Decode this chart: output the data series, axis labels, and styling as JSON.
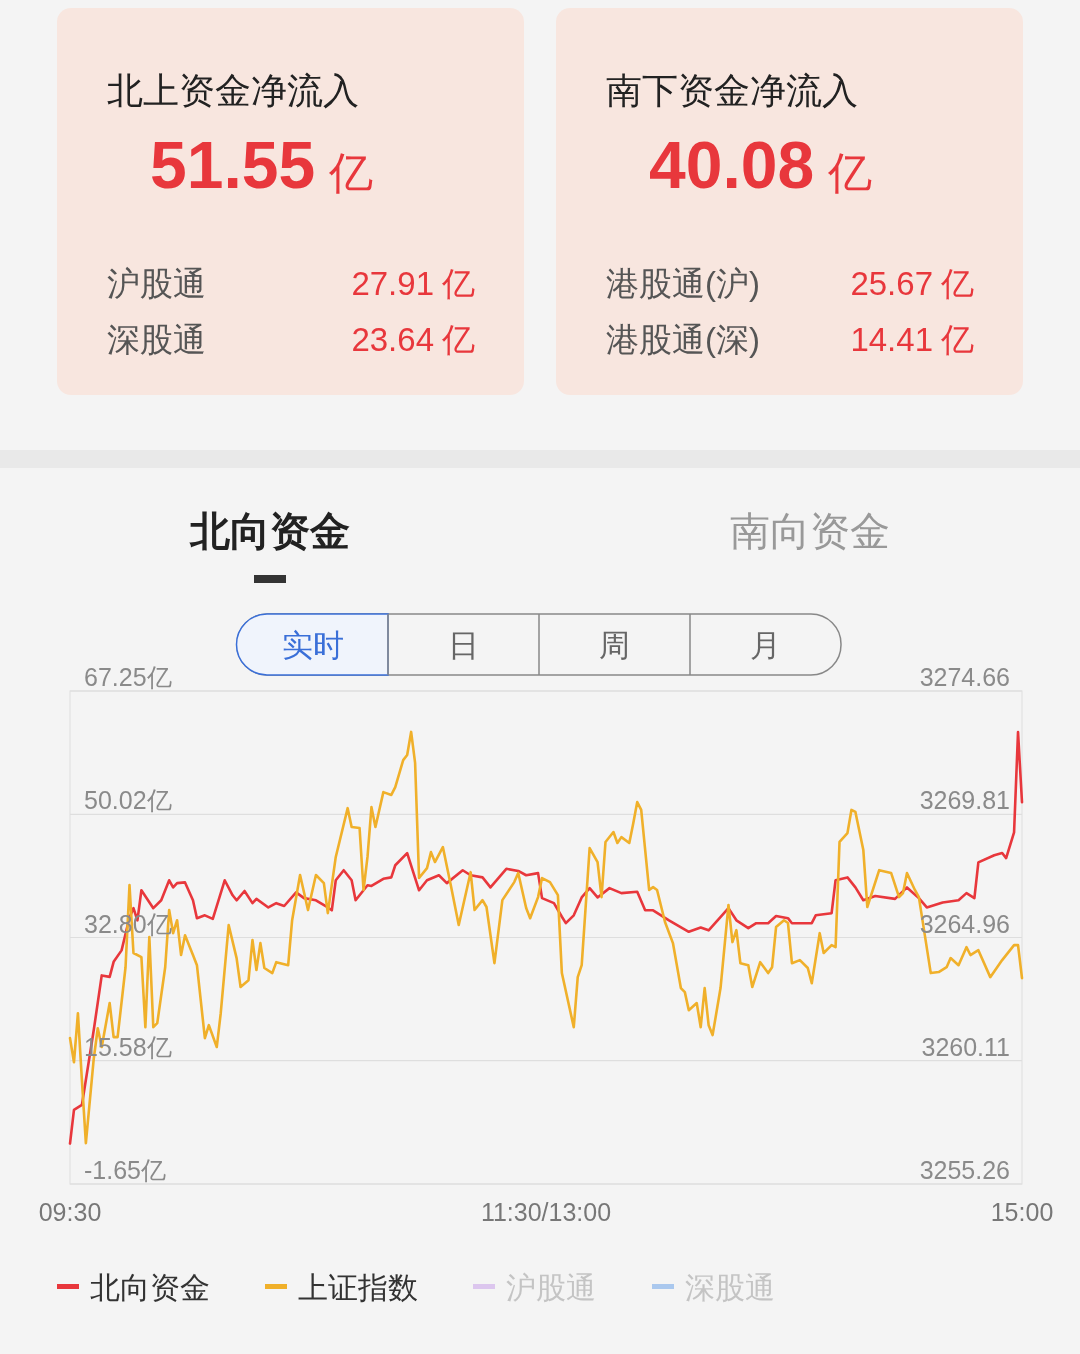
{
  "chart_data": [
    {
      "type": "other",
      "title": "北上资金净流入",
      "subtitle": "51.55 亿",
      "annotations": [
        "沪股通",
        "27.91 亿",
        "深股通",
        "23.64 亿"
      ]
    },
    {
      "type": "other",
      "title": "南下资金净流入",
      "subtitle": "40.08 亿",
      "annotations": [
        "港股通(沪)",
        "25.67 亿",
        "港股通(深)",
        "14.41 亿"
      ]
    },
    {
      "type": "line",
      "categories": [
        "09:30",
        null,
        null,
        null,
        null,
        null,
        null,
        null,
        null,
        null,
        null,
        null,
        null,
        null,
        null,
        null,
        null,
        null,
        null,
        null,
        null,
        null,
        null,
        null,
        null,
        null,
        null,
        null,
        null,
        null,
        null,
        null,
        null,
        null,
        null,
        null,
        null,
        null,
        null,
        null,
        null,
        null,
        null,
        null,
        null,
        null,
        null,
        null,
        null,
        null,
        null,
        null,
        null,
        null,
        null,
        null,
        null,
        null,
        null,
        null,
        null,
        null,
        null,
        null,
        null,
        null,
        null,
        null,
        null,
        null,
        null,
        null,
        null,
        null,
        null,
        null,
        null,
        null,
        null,
        null,
        null,
        null,
        null,
        null,
        null,
        null,
        null,
        null,
        null,
        null,
        null,
        null,
        null,
        null,
        null,
        null,
        null,
        null,
        null,
        null,
        null,
        null,
        null,
        null,
        null,
        null,
        null,
        null,
        null,
        null,
        null,
        null,
        null,
        null,
        null,
        null,
        null,
        null,
        null,
        null,
        "11:30/13:00",
        null,
        null,
        null,
        null,
        null,
        null,
        null,
        null,
        null,
        null,
        null,
        null,
        null,
        null,
        null,
        null,
        null,
        null,
        null,
        null,
        null,
        null,
        null,
        null,
        null,
        null,
        null,
        null,
        null,
        null,
        null,
        null,
        null,
        null,
        null,
        null,
        null,
        null,
        null,
        null,
        null,
        null,
        null,
        null,
        null,
        null,
        null,
        null,
        null,
        null,
        null,
        null,
        null,
        null,
        null,
        null,
        null,
        null,
        null,
        null,
        null,
        null,
        null,
        null,
        null,
        null,
        null,
        null,
        null,
        null,
        null,
        null,
        null,
        null,
        null,
        null,
        null,
        null,
        null,
        null,
        null,
        null,
        null,
        null,
        null,
        null,
        null,
        null,
        null,
        null,
        null,
        null,
        null,
        null,
        null,
        null,
        null,
        null,
        null,
        null,
        null,
        null,
        null,
        null,
        null,
        null,
        null,
        null,
        null,
        null,
        null,
        null,
        null,
        null,
        null,
        null,
        null,
        null,
        null,
        "15:00"
      ],
      "ylim": [
        -1.65,
        67.25
      ],
      "yticks": [
        {
          "value": -1.65,
          "label": "-1.65亿"
        },
        {
          "value": 15.58,
          "label": "15.58亿"
        },
        {
          "value": 32.8,
          "label": "32.80亿"
        },
        {
          "value": 50.02,
          "label": "50.02亿"
        },
        {
          "value": 67.25,
          "label": "67.25亿"
        }
      ],
      "y2lim": [
        3255.26,
        3274.66
      ],
      "y2ticks": [
        3255.26,
        3260.11,
        3264.96,
        3269.81,
        3274.66
      ],
      "grid": "y",
      "legend": "bottom",
      "annotations": [
        "北向资金",
        "南向资金",
        "实时",
        "日",
        "周",
        "月"
      ],
      "series": [
        {
          "name": "北向资金",
          "color": "#e8373c",
          "values": [
            4.0,
            8.7,
            null,
            9.4,
            null,
            null,
            19.9,
            null,
            27.5,
            null,
            27.3,
            29.4,
            null,
            31.0,
            null,
            35.6,
            36.9,
            35.2,
            39.4,
            null,
            null,
            36.9,
            null,
            38.0,
            null,
            40.8,
            39.8,
            40.4,
            null,
            40.5,
            null,
            38.0,
            35.5,
            null,
            35.9,
            null,
            35.4,
            null,
            null,
            40.8,
            null,
            38.7,
            38.0,
            null,
            39.3,
            null,
            37.6,
            38.2,
            null,
            null,
            37.0,
            null,
            37.6,
            null,
            37.2,
            null,
            null,
            39.1,
            null,
            38.3,
            null,
            null,
            38.0,
            null,
            null,
            37.0,
            36.6,
            40.8,
            null,
            42.2,
            null,
            40.8,
            38.0,
            null,
            null,
            40.1,
            40.0,
            null,
            null,
            41.0,
            null,
            41.2,
            42.9,
            null,
            null,
            44.6,
            null,
            null,
            39.4,
            null,
            40.8,
            null,
            null,
            41.5,
            null,
            40.4,
            null,
            null,
            null,
            42.2,
            null,
            41.5,
            null,
            null,
            41.2,
            null,
            39.8,
            null,
            null,
            null,
            42.4,
            null,
            null,
            42.1,
            null,
            41.5,
            null,
            null,
            41.8,
            38.3,
            null,
            null,
            37.6,
            null,
            35.7,
            34.8,
            null,
            35.9,
            null,
            38.4,
            null,
            39.7,
            null,
            38.4,
            null,
            null,
            39.7,
            null,
            null,
            39.0,
            null,
            null,
            null,
            39.2,
            null,
            36.6,
            null,
            36.6,
            null,
            null,
            null,
            35.2,
            null,
            null,
            null,
            null,
            33.6,
            null,
            null,
            34.2,
            null,
            33.8,
            null,
            null,
            null,
            null,
            36.9,
            null,
            35.2,
            null,
            null,
            34.1,
            null,
            34.8,
            null,
            null,
            34.8,
            null,
            35.8,
            null,
            null,
            35.5,
            34.8,
            null,
            null,
            null,
            null,
            34.8,
            35.9,
            null,
            null,
            null,
            36.2,
            40.8,
            null,
            null,
            41.2,
            null,
            39.8,
            null,
            38.0,
            null,
            null,
            38.6,
            null,
            null,
            null,
            null,
            38.2,
            null,
            null,
            39.8,
            null,
            null,
            38.3,
            null,
            37.0,
            null,
            null,
            null,
            37.7,
            null,
            null,
            null,
            38.0,
            null,
            39.0,
            null,
            38.3,
            43.3,
            null,
            null,
            null,
            44.3,
            null,
            44.6,
            43.9,
            null,
            47.5,
            61.5,
            51.7
          ]
        },
        {
          "name": "上证指数",
          "color": "#f0b02a",
          "axis": "y2",
          "values": [
            3261.0,
            3260.05,
            3261.98,
            3259.35,
            3256.87,
            null,
            3260.21,
            3261.39,
            3260.65,
            null,
            3262.38,
            3261.04,
            3261.04,
            null,
            3263.79,
            3267.02,
            3264.35,
            null,
            3264.19,
            3261.43,
            3264.98,
            3261.43,
            3261.59,
            null,
            3263.79,
            3266.04,
            3265.13,
            3265.64,
            3264.27,
            3265.05,
            null,
            3264.27,
            3263.87,
            null,
            3261.0,
            3261.51,
            null,
            3260.65,
            3261.98,
            null,
            3265.45,
            null,
            3264.15,
            3263.01,
            null,
            3263.28,
            3264.86,
            3263.68,
            3264.74,
            3263.76,
            null,
            3263.56,
            3263.99,
            null,
            null,
            3263.87,
            3265.64,
            null,
            3267.42,
            null,
            3266.04,
            null,
            3267.42,
            null,
            3267.1,
            3265.92,
            null,
            3268.13,
            null,
            null,
            3270.05,
            3269.31,
            null,
            3269.27,
            3266.83,
            3268.13,
            3270.09,
            3269.31,
            null,
            3270.68,
            null,
            3270.57,
            3270.88,
            null,
            3271.94,
            3272.14,
            3273.05,
            3271.83,
            3267.3,
            null,
            3267.69,
            3268.32,
            3267.93,
            null,
            3268.52,
            null,
            3267.02,
            null,
            3265.45,
            null,
            null,
            3267.53,
            3266.04,
            null,
            3266.43,
            3266.16,
            null,
            3263.95,
            null,
            3266.43,
            null,
            null,
            3267.14,
            3267.5,
            null,
            3266.12,
            3265.72,
            null,
            3266.55,
            3267.3,
            null,
            3267.14,
            null,
            3266.63,
            3263.56,
            null,
            null,
            3261.43,
            3263.4,
            3263.87,
            null,
            3268.48,
            null,
            3267.93,
            3266.55,
            3268.72,
            null,
            3269.11,
            3268.68,
            3268.91,
            null,
            3268.68,
            3269.46,
            3270.29,
            3269.98,
            null,
            3266.83,
            3266.94,
            3266.83,
            null,
            3265.57,
            null,
            3264.74,
            null,
            3262.97,
            3262.81,
            3262.1,
            null,
            3262.38,
            3261.43,
            3262.97,
            3261.51,
            3261.12,
            null,
            3262.97,
            null,
            3266.24,
            3264.78,
            3265.25,
            3263.95,
            null,
            3263.87,
            3263.01,
            null,
            3263.99,
            null,
            3263.56,
            3263.79,
            3265.37,
            null,
            3265.64,
            3265.53,
            3263.95,
            null,
            3264.07,
            null,
            3263.76,
            3263.16,
            null,
            3265.13,
            3264.35,
            null,
            3264.66,
            3264.58,
            3268.72,
            null,
            3269.07,
            3269.98,
            3269.9,
            null,
            3268.4,
            3266.16,
            null,
            null,
            3267.61,
            null,
            null,
            3267.5,
            null,
            3266.55,
            3266.71,
            3267.5,
            null,
            3266.83,
            3266.55,
            null,
            null,
            3263.56,
            null,
            3263.6,
            null,
            3263.79,
            3264.15,
            null,
            3263.87,
            null,
            3264.58,
            3264.27,
            null,
            3264.46,
            null,
            null,
            3263.4,
            null,
            null,
            3264.07,
            null,
            null,
            3264.66,
            3264.66,
            3263.36
          ]
        },
        {
          "name": "沪股通",
          "color": "#dcc6ee",
          "values": [
            null,
            null,
            null,
            null,
            null,
            null,
            null,
            null,
            null,
            null,
            null,
            null,
            null,
            null,
            null,
            null,
            null,
            null,
            null,
            null,
            null,
            null,
            null,
            null,
            null,
            null,
            null,
            null,
            null,
            null,
            null,
            null,
            null,
            null,
            null,
            null,
            null,
            null,
            null,
            null,
            null,
            null,
            null,
            null,
            null,
            null,
            null,
            null,
            null,
            null,
            null,
            null,
            null,
            null,
            null,
            null,
            null,
            null,
            null,
            null,
            null,
            null,
            null,
            null,
            null,
            null,
            null,
            null,
            null,
            null,
            null,
            null,
            null,
            null,
            null,
            null,
            null,
            null,
            null,
            null,
            null,
            null,
            null,
            null,
            null,
            null,
            null,
            null,
            null,
            null,
            null,
            null,
            null,
            null,
            null,
            null,
            null,
            null,
            null,
            null,
            null,
            null,
            null,
            null,
            null,
            null,
            null,
            null,
            null,
            null,
            null,
            null,
            null,
            null,
            null,
            null,
            null,
            null,
            null,
            null,
            null,
            null,
            null,
            null,
            null,
            null,
            null,
            null,
            null,
            null,
            null,
            null,
            null,
            null,
            null,
            null,
            null,
            null,
            null,
            null,
            null,
            null,
            null,
            null,
            null,
            null,
            null,
            null,
            null,
            null,
            null,
            null,
            null,
            null,
            null,
            null,
            null,
            null,
            null,
            null,
            null,
            null,
            null,
            null,
            null,
            null,
            null,
            null,
            null,
            null,
            null,
            null,
            null,
            null,
            null,
            null,
            null,
            null,
            null,
            null,
            null,
            null,
            null,
            null,
            null,
            null,
            null,
            null,
            null,
            null,
            null,
            null,
            null,
            null,
            null,
            null,
            null,
            null,
            null,
            null,
            null,
            null,
            null,
            null,
            null,
            null,
            null,
            null,
            null,
            null,
            null,
            null,
            null,
            null,
            null,
            null,
            null,
            null,
            null,
            null,
            null,
            null,
            null,
            null,
            null,
            null,
            null,
            null,
            null,
            null,
            null,
            null,
            null,
            null,
            null,
            null,
            null,
            null,
            null,
            null,
            null
          ]
        },
        {
          "name": "深股通",
          "color": "#aac8ee",
          "values": [
            null,
            null,
            null,
            null,
            null,
            null,
            null,
            null,
            null,
            null,
            null,
            null,
            null,
            null,
            null,
            null,
            null,
            null,
            null,
            null,
            null,
            null,
            null,
            null,
            null,
            null,
            null,
            null,
            null,
            null,
            null,
            null,
            null,
            null,
            null,
            null,
            null,
            null,
            null,
            null,
            null,
            null,
            null,
            null,
            null,
            null,
            null,
            null,
            null,
            null,
            null,
            null,
            null,
            null,
            null,
            null,
            null,
            null,
            null,
            null,
            null,
            null,
            null,
            null,
            null,
            null,
            null,
            null,
            null,
            null,
            null,
            null,
            null,
            null,
            null,
            null,
            null,
            null,
            null,
            null,
            null,
            null,
            null,
            null,
            null,
            null,
            null,
            null,
            null,
            null,
            null,
            null,
            null,
            null,
            null,
            null,
            null,
            null,
            null,
            null,
            null,
            null,
            null,
            null,
            null,
            null,
            null,
            null,
            null,
            null,
            null,
            null,
            null,
            null,
            null,
            null,
            null,
            null,
            null,
            null,
            null,
            null,
            null,
            null,
            null,
            null,
            null,
            null,
            null,
            null,
            null,
            null,
            null,
            null,
            null,
            null,
            null,
            null,
            null,
            null,
            null,
            null,
            null,
            null,
            null,
            null,
            null,
            null,
            null,
            null,
            null,
            null,
            null,
            null,
            null,
            null,
            null,
            null,
            null,
            null,
            null,
            null,
            null,
            null,
            null,
            null,
            null,
            null,
            null,
            null,
            null,
            null,
            null,
            null,
            null,
            null,
            null,
            null,
            null,
            null,
            null,
            null,
            null,
            null,
            null,
            null,
            null,
            null,
            null,
            null,
            null,
            null,
            null,
            null,
            null,
            null,
            null,
            null,
            null,
            null,
            null,
            null,
            null,
            null,
            null,
            null,
            null,
            null,
            null,
            null,
            null,
            null,
            null,
            null,
            null,
            null,
            null,
            null,
            null,
            null,
            null,
            null,
            null,
            null,
            null,
            null,
            null,
            null,
            null,
            null,
            null,
            null,
            null,
            null,
            null,
            null,
            null,
            null,
            null,
            null,
            null
          ]
        }
      ]
    }
  ]
}
